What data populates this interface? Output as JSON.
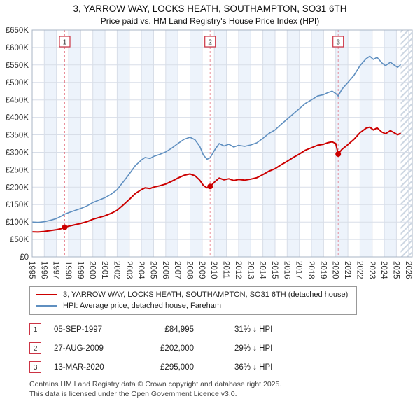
{
  "title": "3, YARROW WAY, LOCKS HEATH, SOUTHAMPTON, SO31 6TH",
  "subtitle": "Price paid vs. HM Land Registry's House Price Index (HPI)",
  "chart_data": {
    "type": "line",
    "xlim": [
      1995,
      2026.3
    ],
    "ylim": [
      0,
      650000
    ],
    "y_tick_step": 50000,
    "y_tick_labels": [
      "£0",
      "£50K",
      "£100K",
      "£150K",
      "£200K",
      "£250K",
      "£300K",
      "£350K",
      "£400K",
      "£450K",
      "£500K",
      "£550K",
      "£600K",
      "£650K"
    ],
    "x_ticks": [
      1995,
      1996,
      1997,
      1998,
      1999,
      2000,
      2001,
      2002,
      2003,
      2004,
      2005,
      2006,
      2007,
      2008,
      2009,
      2010,
      2011,
      2012,
      2013,
      2014,
      2015,
      2016,
      2017,
      2018,
      2019,
      2020,
      2021,
      2022,
      2023,
      2024,
      2025,
      2026
    ],
    "x": [
      1995,
      1995.5,
      1996,
      1996.5,
      1997,
      1997.4,
      1997.68,
      1998,
      1998.5,
      1999,
      1999.5,
      2000,
      2000.5,
      2001,
      2001.5,
      2002,
      2002.5,
      2003,
      2003.5,
      2004,
      2004.3,
      2004.7,
      2005,
      2005.5,
      2006,
      2006.5,
      2007,
      2007.5,
      2008,
      2008.4,
      2008.8,
      2009.1,
      2009.4,
      2009.65,
      2010,
      2010.4,
      2010.8,
      2011.2,
      2011.6,
      2012,
      2012.5,
      2013,
      2013.5,
      2014,
      2014.5,
      2015,
      2015.5,
      2016,
      2016.5,
      2017,
      2017.5,
      2018,
      2018.5,
      2019,
      2019.3,
      2019.7,
      2020,
      2020.2,
      2020.5,
      2021,
      2021.5,
      2022,
      2022.5,
      2022.8,
      2023.1,
      2023.4,
      2023.8,
      2024.1,
      2024.5,
      2024.8,
      2025.1,
      2025.35
    ],
    "series": [
      {
        "name": "3, YARROW WAY, LOCKS HEATH, SOUTHAMPTON, SO31 6TH (detached house)",
        "color": "#cc0000",
        "width": 2,
        "values": [
          72000,
          71500,
          73000,
          75500,
          78000,
          81000,
          84995,
          88000,
          92000,
          96000,
          101000,
          108000,
          113000,
          118000,
          125000,
          134000,
          149000,
          165000,
          182000,
          193000,
          198000,
          196000,
          200000,
          204000,
          209000,
          217000,
          226000,
          234000,
          238000,
          233000,
          220000,
          205000,
          198000,
          202000,
          214000,
          226000,
          221000,
          224000,
          219000,
          222000,
          220000,
          223000,
          227000,
          236000,
          246000,
          253000,
          264000,
          274000,
          285000,
          295000,
          306000,
          313000,
          320000,
          323000,
          327000,
          330000,
          325000,
          295000,
          308000,
          322000,
          337000,
          356000,
          369000,
          372000,
          364000,
          370000,
          358000,
          353000,
          362000,
          356000,
          350000,
          355000
        ]
      },
      {
        "name": "HPI: Average price, detached house, Fareham",
        "color": "#5f8fc0",
        "width": 1.6,
        "values": [
          100000,
          99000,
          101000,
          105000,
          110000,
          117000,
          123000,
          127000,
          133000,
          139000,
          146000,
          156000,
          163000,
          170000,
          180000,
          193000,
          215000,
          238000,
          262000,
          278000,
          285000,
          282000,
          288000,
          294000,
          301000,
          312000,
          325000,
          337000,
          343000,
          336000,
          317000,
          292000,
          280000,
          284000,
          305000,
          325000,
          318000,
          323000,
          315000,
          320000,
          317000,
          321000,
          327000,
          340000,
          354000,
          364000,
          380000,
          395000,
          410000,
          425000,
          440000,
          450000,
          461000,
          465000,
          470000,
          475000,
          468000,
          461000,
          480000,
          500000,
          520000,
          548000,
          568000,
          575000,
          566000,
          572000,
          556000,
          548000,
          558000,
          550000,
          543000,
          551000
        ]
      }
    ],
    "sales": [
      {
        "n": "1",
        "x": 1997.68,
        "price": 84995
      },
      {
        "n": "2",
        "x": 2009.65,
        "price": 202000
      },
      {
        "n": "3",
        "x": 2020.2,
        "price": 295000
      }
    ],
    "hatch_start": 2025.35,
    "colors": {
      "grid": "#d8dee8",
      "band": "#edf3fb",
      "dashed": "#e06070",
      "border": "#a8b4c4",
      "hatch": "#ccd6e2"
    }
  },
  "legend": [
    {
      "label": "3, YARROW WAY, LOCKS HEATH, SOUTHAMPTON, SO31 6TH (detached house)",
      "color": "#cc0000"
    },
    {
      "label": "HPI: Average price, detached house, Fareham",
      "color": "#5f8fc0"
    }
  ],
  "transactions": [
    {
      "num": "1",
      "date": "05-SEP-1997",
      "price": "£84,995",
      "hpi": "31% ↓ HPI"
    },
    {
      "num": "2",
      "date": "27-AUG-2009",
      "price": "£202,000",
      "hpi": "29% ↓ HPI"
    },
    {
      "num": "3",
      "date": "13-MAR-2020",
      "price": "£295,000",
      "hpi": "36% ↓ HPI"
    }
  ],
  "footer": {
    "line1": "Contains HM Land Registry data © Crown copyright and database right 2025.",
    "line2": "This data is licensed under the Open Government Licence v3.0."
  }
}
